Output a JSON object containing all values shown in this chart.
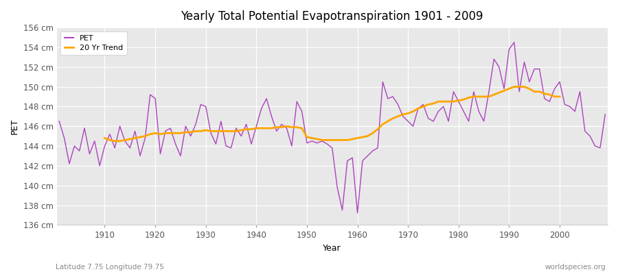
{
  "title": "Yearly Total Potential Evapotranspiration 1901 - 2009",
  "xlabel": "Year",
  "ylabel": "PET",
  "subtitle_left": "Latitude 7.75 Longitude 79.75",
  "subtitle_right": "worldspecies.org",
  "pet_color": "#AA44BB",
  "trend_color": "#FFA500",
  "plot_bg_color": "#E8E8E8",
  "fig_bg_color": "#FFFFFF",
  "ylim": [
    136,
    156
  ],
  "ytick_step": 2,
  "years": [
    1901,
    1902,
    1903,
    1904,
    1905,
    1906,
    1907,
    1908,
    1909,
    1910,
    1911,
    1912,
    1913,
    1914,
    1915,
    1916,
    1917,
    1918,
    1919,
    1920,
    1921,
    1922,
    1923,
    1924,
    1925,
    1926,
    1927,
    1928,
    1929,
    1930,
    1931,
    1932,
    1933,
    1934,
    1935,
    1936,
    1937,
    1938,
    1939,
    1940,
    1941,
    1942,
    1943,
    1944,
    1945,
    1946,
    1947,
    1948,
    1949,
    1950,
    1951,
    1952,
    1953,
    1954,
    1955,
    1956,
    1957,
    1958,
    1959,
    1960,
    1961,
    1962,
    1963,
    1964,
    1965,
    1966,
    1967,
    1968,
    1969,
    1970,
    1971,
    1972,
    1973,
    1974,
    1975,
    1976,
    1977,
    1978,
    1979,
    1980,
    1981,
    1982,
    1983,
    1984,
    1985,
    1986,
    1987,
    1988,
    1989,
    1990,
    1991,
    1992,
    1993,
    1994,
    1995,
    1996,
    1997,
    1998,
    1999,
    2000,
    2001,
    2002,
    2003,
    2004,
    2005,
    2006,
    2007,
    2008,
    2009
  ],
  "pet_values": [
    146.5,
    144.8,
    142.2,
    144.0,
    143.5,
    145.8,
    143.2,
    144.5,
    142.0,
    144.0,
    145.2,
    143.8,
    146.0,
    144.5,
    143.8,
    145.5,
    143.0,
    144.8,
    149.2,
    148.8,
    143.2,
    145.5,
    145.8,
    144.2,
    143.0,
    146.0,
    145.0,
    146.2,
    148.2,
    148.0,
    145.3,
    144.2,
    146.5,
    144.0,
    143.8,
    145.8,
    145.0,
    146.2,
    144.2,
    146.0,
    147.8,
    148.8,
    147.0,
    145.5,
    146.2,
    145.8,
    144.0,
    148.5,
    147.5,
    144.3,
    144.5,
    144.3,
    144.5,
    144.2,
    143.8,
    139.8,
    137.5,
    142.5,
    142.8,
    137.2,
    142.5,
    143.0,
    143.5,
    143.8,
    150.5,
    148.8,
    149.0,
    148.2,
    147.0,
    146.5,
    146.0,
    147.8,
    148.2,
    146.8,
    146.5,
    147.5,
    148.0,
    146.5,
    149.5,
    148.5,
    147.5,
    146.5,
    149.5,
    147.5,
    146.5,
    149.5,
    152.8,
    152.0,
    149.8,
    153.8,
    154.5,
    149.5,
    152.5,
    150.5,
    151.8,
    151.8,
    148.8,
    148.5,
    149.8,
    150.5,
    148.2,
    148.0,
    147.5,
    149.5,
    145.5,
    145.0,
    144.0,
    143.8,
    147.2
  ],
  "trend_years": [
    1910,
    1911,
    1912,
    1913,
    1914,
    1915,
    1916,
    1917,
    1918,
    1919,
    1920,
    1921,
    1922,
    1923,
    1924,
    1925,
    1926,
    1927,
    1928,
    1929,
    1930,
    1931,
    1932,
    1933,
    1934,
    1935,
    1936,
    1937,
    1938,
    1939,
    1940,
    1941,
    1942,
    1943,
    1944,
    1945,
    1946,
    1947,
    1948,
    1949,
    1950,
    1951,
    1952,
    1953,
    1954,
    1955,
    1956,
    1957,
    1958,
    1959,
    1960,
    1961,
    1962,
    1963,
    1964,
    1965,
    1966,
    1967,
    1968,
    1969,
    1970,
    1971,
    1972,
    1973,
    1974,
    1975,
    1976,
    1977,
    1978,
    1979,
    1980,
    1981,
    1982,
    1983,
    1984,
    1985,
    1986,
    1987,
    1988,
    1989,
    1990,
    1991,
    1992,
    1993,
    1994,
    1995,
    1996,
    1997,
    1998,
    1999,
    2000
  ],
  "trend_values": [
    144.8,
    144.6,
    144.5,
    144.5,
    144.6,
    144.7,
    144.8,
    144.9,
    145.0,
    145.2,
    145.3,
    145.2,
    145.3,
    145.3,
    145.3,
    145.3,
    145.4,
    145.4,
    145.5,
    145.5,
    145.6,
    145.5,
    145.5,
    145.5,
    145.5,
    145.5,
    145.5,
    145.6,
    145.7,
    145.7,
    145.8,
    145.8,
    145.8,
    145.8,
    145.9,
    145.9,
    146.0,
    145.9,
    145.9,
    145.8,
    144.9,
    144.8,
    144.7,
    144.6,
    144.6,
    144.6,
    144.6,
    144.6,
    144.6,
    144.7,
    144.8,
    144.9,
    145.0,
    145.3,
    145.7,
    146.2,
    146.5,
    146.8,
    147.0,
    147.2,
    147.3,
    147.5,
    147.8,
    148.0,
    148.2,
    148.3,
    148.5,
    148.5,
    148.5,
    148.5,
    148.6,
    148.7,
    148.9,
    149.0,
    149.0,
    149.0,
    149.0,
    149.2,
    149.4,
    149.6,
    149.8,
    150.0,
    150.0,
    150.0,
    149.8,
    149.5,
    149.5,
    149.3,
    149.2,
    149.0,
    149.0
  ]
}
